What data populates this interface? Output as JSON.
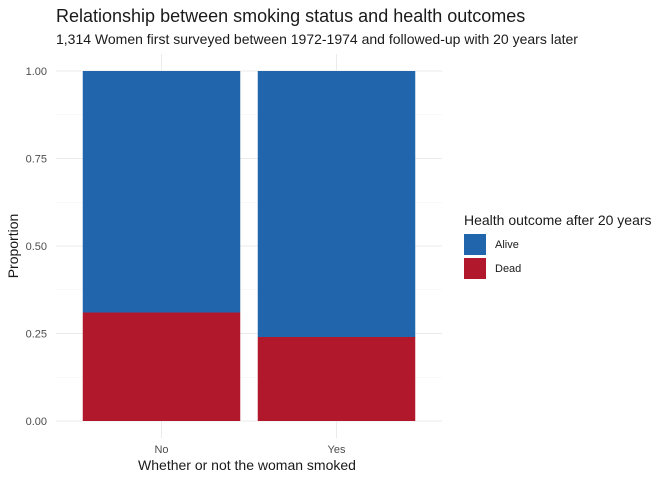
{
  "chart_data": {
    "type": "bar",
    "stacked": true,
    "title": "Relationship between smoking status and health outcomes",
    "subtitle": "1,314 Women first surveyed between 1972-1974 and followed-up with 20 years later",
    "xlabel": "Whether or not the woman smoked",
    "ylabel": "Proportion",
    "categories": [
      "No",
      "Yes"
    ],
    "ylim": [
      0,
      1
    ],
    "yticks": [
      "0.00",
      "0.25",
      "0.50",
      "0.75",
      "1.00"
    ],
    "grid": true,
    "legend": {
      "title": "Health outcome after 20 years",
      "position": "right"
    },
    "series": [
      {
        "name": "Dead",
        "color": "#B2182B",
        "values": [
          0.31,
          0.24
        ]
      },
      {
        "name": "Alive",
        "color": "#2166AC",
        "values": [
          0.69,
          0.76
        ]
      }
    ]
  }
}
